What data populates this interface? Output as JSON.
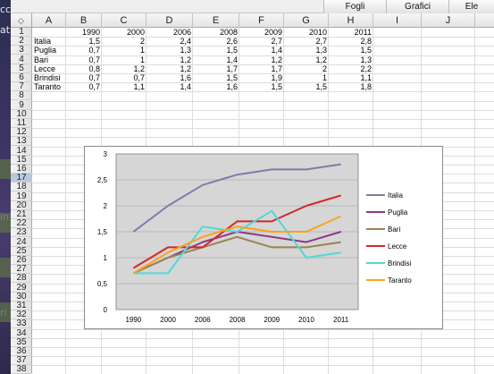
{
  "desktop": {
    "side_chars": [
      "cc",
      "at",
      "in",
      "ri"
    ]
  },
  "ribbon": {
    "tabs": [
      "Fogli",
      "Grafici",
      "Ele"
    ]
  },
  "columns": [
    "A",
    "B",
    "C",
    "D",
    "E",
    "F",
    "G",
    "H",
    "I",
    "J"
  ],
  "rows": [
    "1",
    "2",
    "3",
    "4",
    "5",
    "6",
    "7",
    "8",
    "9",
    "10",
    "11",
    "12",
    "13",
    "14",
    "15",
    "16",
    "17",
    "18",
    "19",
    "20",
    "21",
    "22",
    "23",
    "24",
    "25",
    "26",
    "27",
    "28",
    "29",
    "30",
    "31",
    "32",
    "33",
    "34",
    "35",
    "36",
    "37",
    "38"
  ],
  "selected_row": "17",
  "table": {
    "years": [
      "1990",
      "2000",
      "2006",
      "2008",
      "2009",
      "2010",
      "2011"
    ],
    "regions": [
      {
        "name": "Italia",
        "values": [
          "1,5",
          "2",
          "2,4",
          "2,6",
          "2,7",
          "2,7",
          "2,8"
        ]
      },
      {
        "name": "Puglia",
        "values": [
          "0,7",
          "1",
          "1,3",
          "1,5",
          "1,4",
          "1,3",
          "1,5"
        ]
      },
      {
        "name": "Bari",
        "values": [
          "0,7",
          "1",
          "1,2",
          "1,4",
          "1,2",
          "1,2",
          "1,3"
        ]
      },
      {
        "name": "Lecce",
        "values": [
          "0,8",
          "1,2",
          "1,2",
          "1,7",
          "1,7",
          "2",
          "2,2"
        ]
      },
      {
        "name": "Brindisi",
        "values": [
          "0,7",
          "0,7",
          "1,6",
          "1,5",
          "1,9",
          "1",
          "1,1"
        ]
      },
      {
        "name": "Taranto",
        "values": [
          "0,7",
          "1,1",
          "1,4",
          "1,6",
          "1,5",
          "1,5",
          "1,8"
        ]
      }
    ]
  },
  "chart_data": {
    "type": "line",
    "categories": [
      "1990",
      "2000",
      "2006",
      "2008",
      "2009",
      "2010",
      "2011"
    ],
    "ylim": [
      0,
      3
    ],
    "yticks": [
      "0",
      "0,5",
      "1",
      "1,5",
      "2",
      "2,5",
      "3"
    ],
    "grid": true,
    "legend": "right",
    "plot_background": "#d6d6d6",
    "series": [
      {
        "name": "Italia",
        "color": "#7b7ea8",
        "values": [
          1.5,
          2.0,
          2.4,
          2.6,
          2.7,
          2.7,
          2.8
        ]
      },
      {
        "name": "Puglia",
        "color": "#8e3a86",
        "values": [
          0.7,
          1.0,
          1.3,
          1.5,
          1.4,
          1.3,
          1.5
        ]
      },
      {
        "name": "Bari",
        "color": "#9c8350",
        "values": [
          0.7,
          1.0,
          1.2,
          1.4,
          1.2,
          1.2,
          1.3
        ]
      },
      {
        "name": "Lecce",
        "color": "#d4262a",
        "values": [
          0.8,
          1.2,
          1.2,
          1.7,
          1.7,
          2.0,
          2.2
        ]
      },
      {
        "name": "Brindisi",
        "color": "#4fd9d6",
        "values": [
          0.7,
          0.7,
          1.6,
          1.5,
          1.9,
          1.0,
          1.1
        ]
      },
      {
        "name": "Taranto",
        "color": "#f8a31e",
        "values": [
          0.7,
          1.1,
          1.4,
          1.6,
          1.5,
          1.5,
          1.8
        ]
      }
    ]
  }
}
